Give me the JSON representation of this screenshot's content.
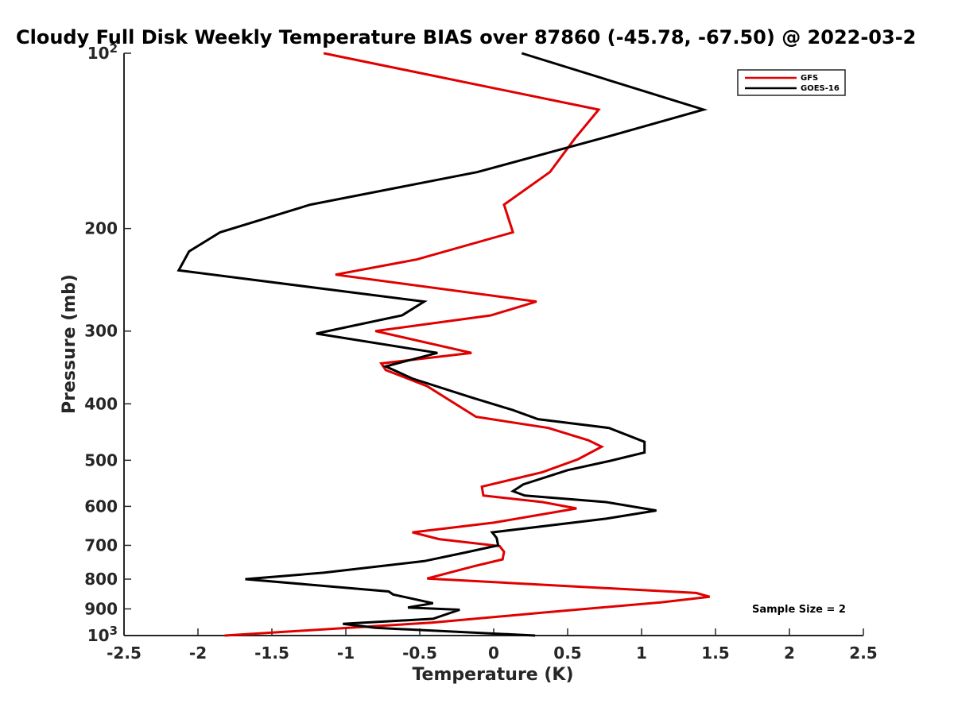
{
  "chart_data": {
    "type": "line",
    "title": "Cloudy Full Disk Weekly Temperature BIAS over 87860 (-45.78, -67.50) @ 2022-03-2",
    "xlabel": "Temperature (K)",
    "ylabel": "Pressure (mb)",
    "xlim": [
      -2.5,
      2.5
    ],
    "ylim": [
      100,
      1000
    ],
    "y_scale": "log",
    "y_reversed": true,
    "grid": false,
    "legend_position": "top-right",
    "x_ticks": [
      -2.5,
      -2,
      -1.5,
      -1,
      -0.5,
      0,
      0.5,
      1,
      1.5,
      2,
      2.5
    ],
    "x_tick_labels": [
      "-2.5",
      "-2",
      "-1.5",
      "-1",
      "-0.5",
      "0",
      "0.5",
      "1",
      "1.5",
      "2",
      "2.5"
    ],
    "y_ticks": [
      100,
      200,
      300,
      400,
      500,
      600,
      700,
      800,
      900,
      1000
    ],
    "y_tick_labels": [
      {
        "base": "10",
        "exp": "2"
      },
      {
        "base": "200",
        "exp": ""
      },
      {
        "base": "300",
        "exp": ""
      },
      {
        "base": "400",
        "exp": ""
      },
      {
        "base": "500",
        "exp": ""
      },
      {
        "base": "600",
        "exp": ""
      },
      {
        "base": "700",
        "exp": ""
      },
      {
        "base": "800",
        "exp": ""
      },
      {
        "base": "900",
        "exp": ""
      },
      {
        "base": "10",
        "exp": "3"
      }
    ],
    "annotation": "Sample Size = 2",
    "series": [
      {
        "name": "GFS",
        "color": "#e00000",
        "points": [
          [
            -1.15,
            100
          ],
          [
            0.71,
            125
          ],
          [
            0.55,
            140
          ],
          [
            0.38,
            160
          ],
          [
            0.07,
            182
          ],
          [
            0.13,
            203
          ],
          [
            -0.52,
            226
          ],
          [
            -1.07,
            240
          ],
          [
            0.29,
            267
          ],
          [
            -0.02,
            282
          ],
          [
            -0.8,
            300
          ],
          [
            -0.15,
            327
          ],
          [
            -0.76,
            341
          ],
          [
            -0.73,
            350
          ],
          [
            -0.45,
            373
          ],
          [
            -0.12,
            421
          ],
          [
            0.37,
            440
          ],
          [
            0.64,
            462
          ],
          [
            0.73,
            474
          ],
          [
            0.57,
            498
          ],
          [
            0.33,
            524
          ],
          [
            -0.08,
            555
          ],
          [
            -0.07,
            575
          ],
          [
            0.33,
            590
          ],
          [
            0.56,
            605
          ],
          [
            0.0,
            640
          ],
          [
            -0.55,
            665
          ],
          [
            -0.37,
            683
          ],
          [
            0.04,
            702
          ],
          [
            0.07,
            718
          ],
          [
            0.06,
            740
          ],
          [
            -0.13,
            760
          ],
          [
            -0.45,
            798
          ],
          [
            1.37,
            845
          ],
          [
            1.46,
            858
          ],
          [
            1.13,
            877
          ],
          [
            0.34,
            913
          ],
          [
            -0.01,
            930
          ],
          [
            -0.42,
            950
          ],
          [
            -0.79,
            963
          ],
          [
            -1.82,
            1000
          ]
        ]
      },
      {
        "name": "GOES-16",
        "color": "#000000",
        "points": [
          [
            0.19,
            100
          ],
          [
            1.42,
            125
          ],
          [
            0.73,
            140
          ],
          [
            -0.11,
            160
          ],
          [
            -1.24,
            182
          ],
          [
            -1.85,
            203
          ],
          [
            -2.06,
            219
          ],
          [
            -2.13,
            236
          ],
          [
            -0.47,
            267
          ],
          [
            -0.62,
            282
          ],
          [
            -1.2,
            303
          ],
          [
            -0.38,
            327
          ],
          [
            -0.73,
            345
          ],
          [
            -0.55,
            362
          ],
          [
            -0.15,
            390
          ],
          [
            0.13,
            410
          ],
          [
            0.3,
            425
          ],
          [
            0.78,
            440
          ],
          [
            1.02,
            465
          ],
          [
            1.02,
            485
          ],
          [
            0.79,
            501
          ],
          [
            0.5,
            520
          ],
          [
            0.2,
            550
          ],
          [
            0.13,
            565
          ],
          [
            0.21,
            575
          ],
          [
            0.76,
            590
          ],
          [
            1.1,
            610
          ],
          [
            0.76,
            630
          ],
          [
            -0.01,
            665
          ],
          [
            0.02,
            680
          ],
          [
            0.03,
            700
          ],
          [
            -0.19,
            720
          ],
          [
            -0.47,
            745
          ],
          [
            -1.15,
            780
          ],
          [
            -1.68,
            800
          ],
          [
            -0.71,
            840
          ],
          [
            -0.68,
            850
          ],
          [
            -0.41,
            880
          ],
          [
            -0.58,
            895
          ],
          [
            -0.23,
            903
          ],
          [
            -0.41,
            936
          ],
          [
            -1.02,
            955
          ],
          [
            -0.8,
            970
          ],
          [
            0.28,
            1000
          ]
        ]
      }
    ]
  }
}
